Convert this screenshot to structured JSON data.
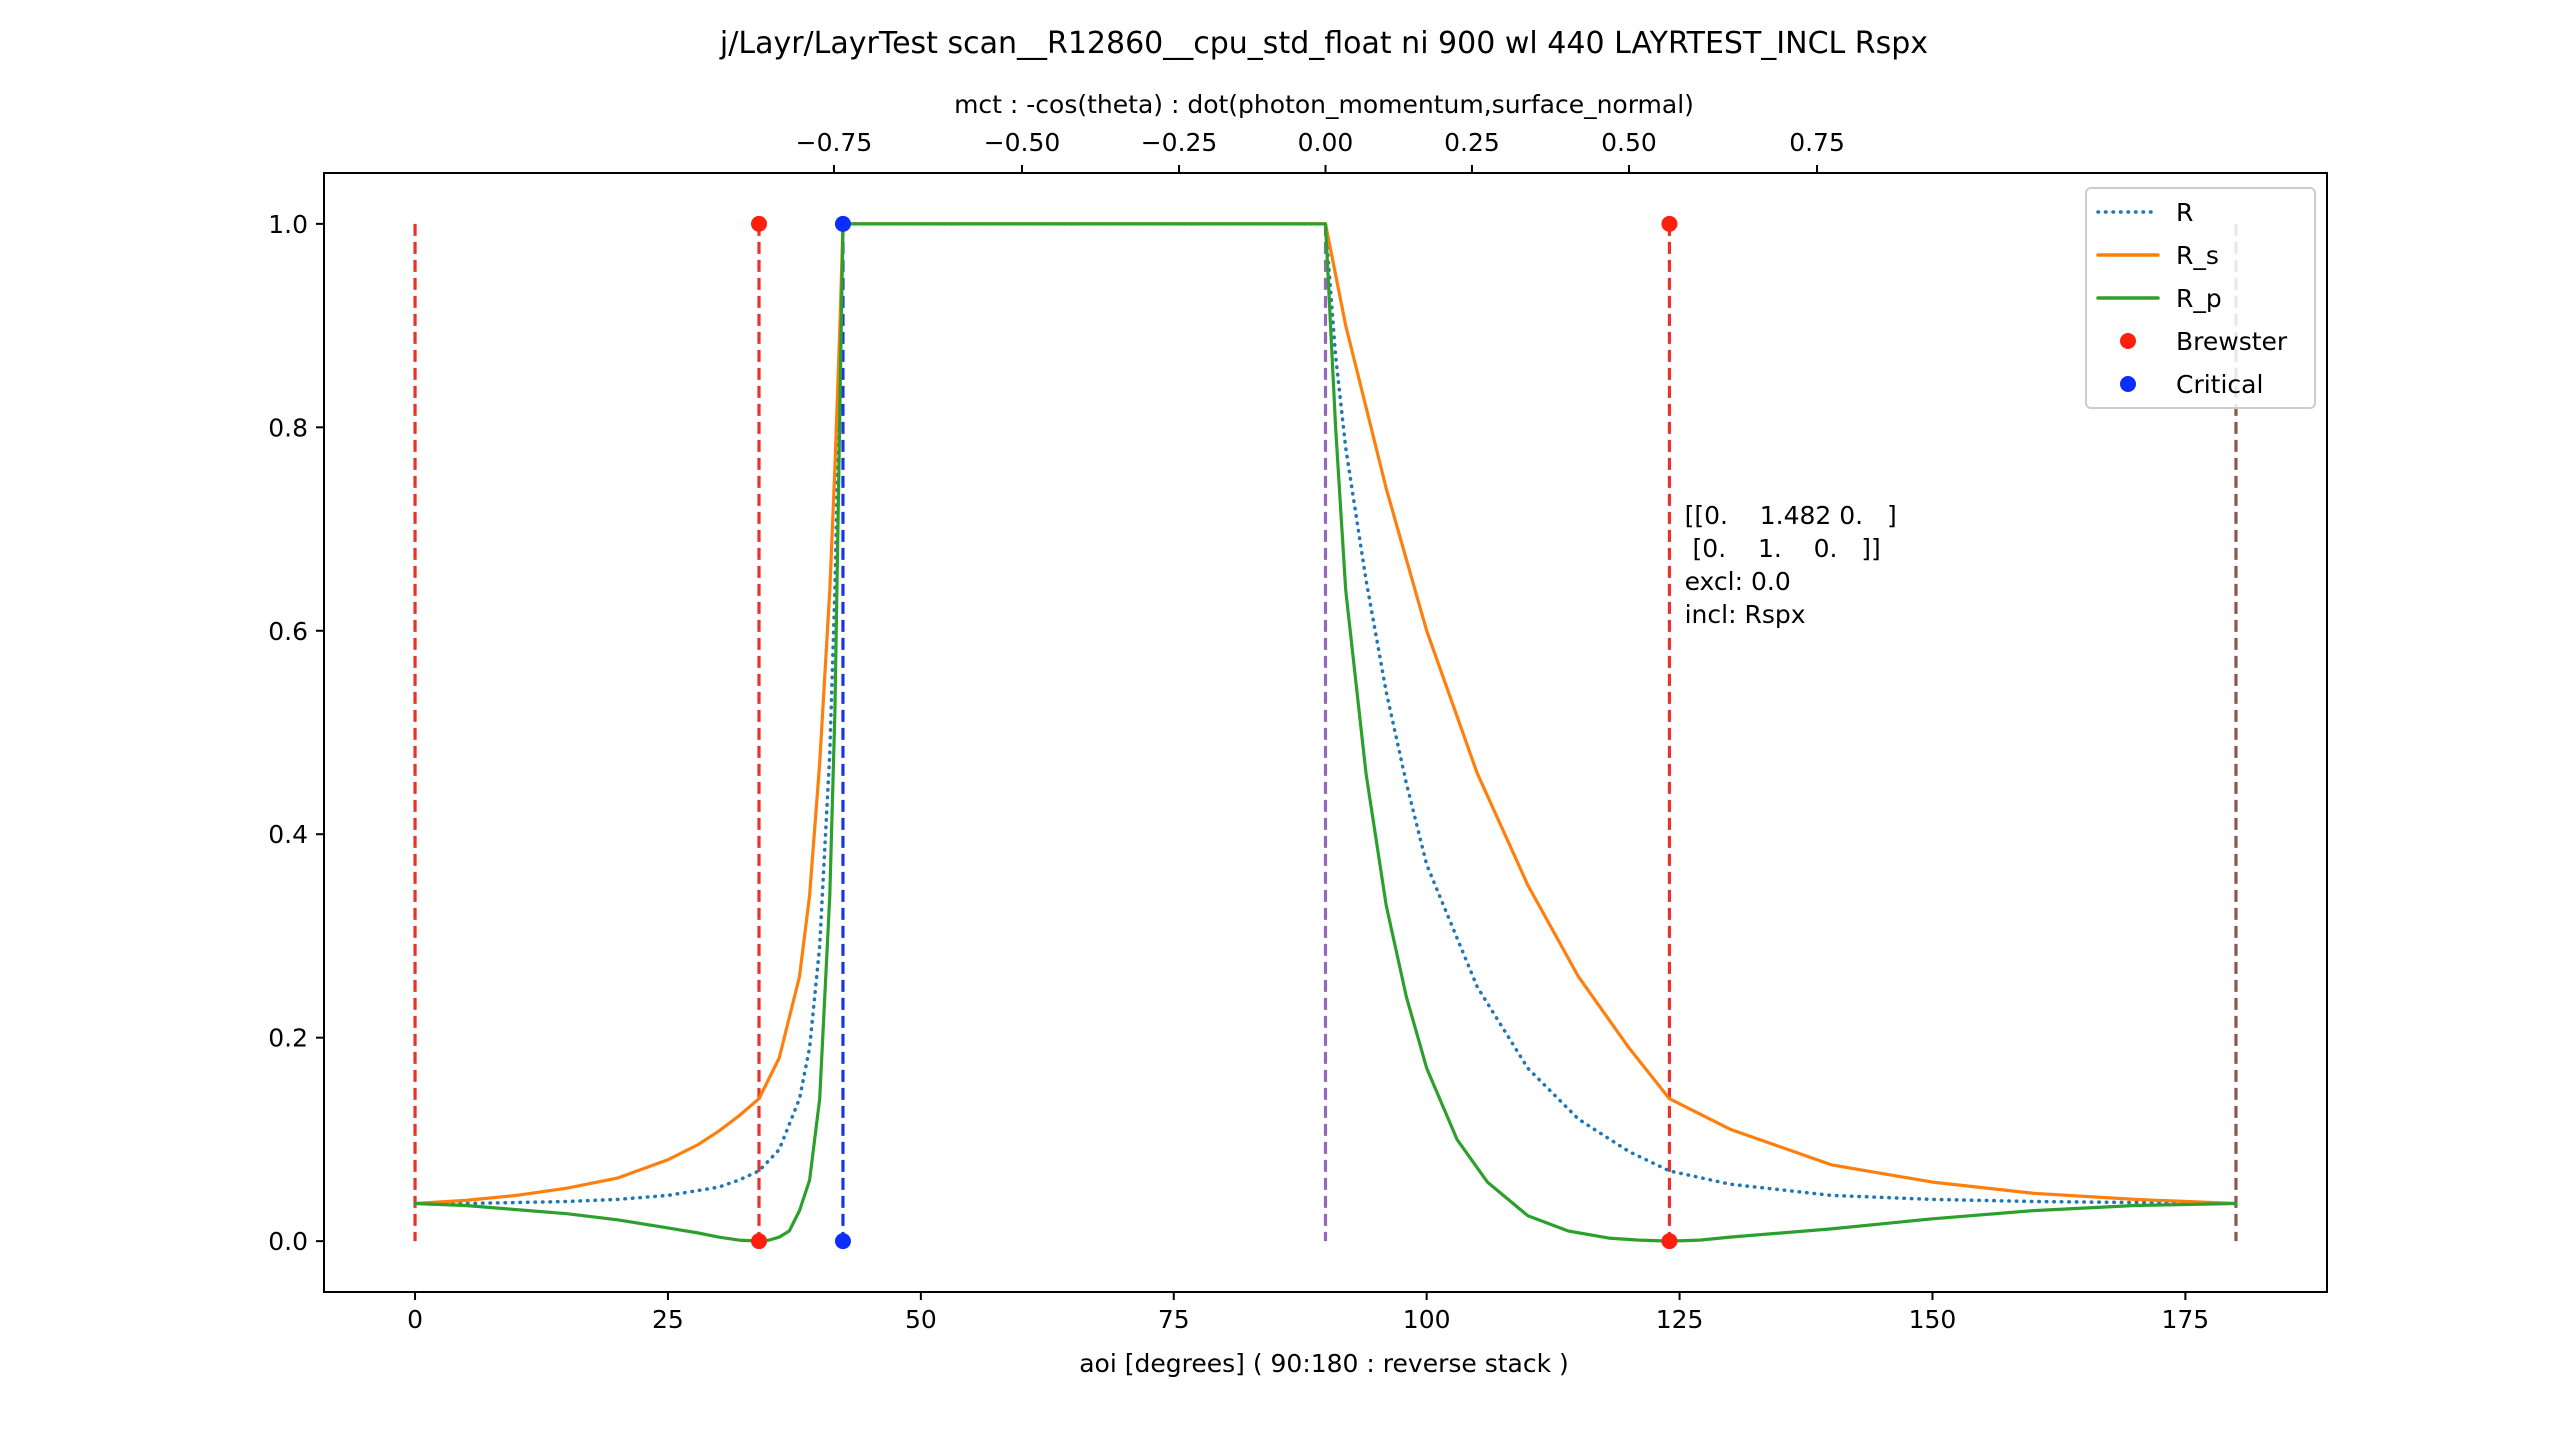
{
  "chart_data": {
    "type": "line",
    "title": "j/Layr/LayrTest scan__R12860__cpu_std_float ni 900 wl 440 LAYRTEST_INCL Rspx",
    "xlabel": "aoi [degrees] ( 90:180 : reverse stack )",
    "top_xlabel": "mct : -cos(theta) : dot(photon_momentum,surface_normal)",
    "xlim": [
      -9,
      189
    ],
    "ylim": [
      -0.05,
      1.05
    ],
    "xticks": [
      0,
      25,
      50,
      75,
      100,
      125,
      150,
      175
    ],
    "xtick_labels": [
      "0",
      "25",
      "50",
      "75",
      "100",
      "125",
      "150",
      "175"
    ],
    "yticks": [
      0.0,
      0.2,
      0.4,
      0.6,
      0.8,
      1.0
    ],
    "ytick_labels": [
      "0.0",
      "0.2",
      "0.4",
      "0.6",
      "0.8",
      "1.0"
    ],
    "top_xticks": [
      -0.75,
      -0.5,
      -0.25,
      0.0,
      0.25,
      0.5,
      0.75
    ],
    "top_xtick_labels": [
      "−0.75",
      "−0.50",
      "−0.25",
      "0.00",
      "0.25",
      "0.50",
      "0.75"
    ],
    "series": [
      {
        "name": "R",
        "style": "dotted",
        "color": "#1f77b4",
        "x": [
          0,
          5,
          10,
          15,
          20,
          25,
          30,
          32,
          34,
          36,
          38,
          39,
          40,
          41,
          41.5,
          42,
          42.3,
          50,
          90,
          91,
          92,
          94,
          96,
          98,
          100,
          105,
          110,
          115,
          120,
          124,
          130,
          140,
          150,
          160,
          170,
          180
        ],
        "values": [
          0.037,
          0.037,
          0.038,
          0.039,
          0.041,
          0.045,
          0.053,
          0.06,
          0.069,
          0.09,
          0.14,
          0.19,
          0.29,
          0.48,
          0.64,
          0.86,
          1.0,
          1.0,
          1.0,
          0.87,
          0.78,
          0.65,
          0.54,
          0.45,
          0.37,
          0.25,
          0.17,
          0.12,
          0.088,
          0.069,
          0.056,
          0.045,
          0.041,
          0.039,
          0.038,
          0.037
        ]
      },
      {
        "name": "R_s",
        "style": "solid",
        "color": "#ff7f0e",
        "x": [
          0,
          5,
          10,
          15,
          20,
          25,
          28,
          30,
          32,
          34,
          36,
          38,
          39,
          40,
          41,
          41.5,
          42,
          42.3,
          50,
          90,
          91,
          92,
          94,
          96,
          98,
          100,
          105,
          110,
          115,
          120,
          124,
          130,
          140,
          150,
          160,
          170,
          180
        ],
        "values": [
          0.037,
          0.04,
          0.045,
          0.052,
          0.062,
          0.08,
          0.095,
          0.108,
          0.123,
          0.14,
          0.18,
          0.26,
          0.34,
          0.47,
          0.64,
          0.76,
          0.9,
          1.0,
          1.0,
          1.0,
          0.95,
          0.9,
          0.82,
          0.74,
          0.67,
          0.6,
          0.46,
          0.35,
          0.26,
          0.19,
          0.14,
          0.11,
          0.075,
          0.058,
          0.047,
          0.041,
          0.037
        ]
      },
      {
        "name": "R_p",
        "style": "solid",
        "color": "#2ca02c",
        "x": [
          0,
          5,
          10,
          15,
          20,
          25,
          28,
          30,
          32,
          34,
          35,
          36,
          37,
          38,
          39,
          40,
          41,
          41.5,
          42,
          42.3,
          50,
          90,
          91,
          92,
          94,
          96,
          98,
          100,
          103,
          106,
          110,
          114,
          118,
          121,
          124,
          127,
          130,
          140,
          150,
          160,
          170,
          180
        ],
        "values": [
          0.037,
          0.035,
          0.031,
          0.027,
          0.021,
          0.013,
          0.008,
          0.004,
          0.001,
          0.0,
          0.001,
          0.004,
          0.01,
          0.03,
          0.06,
          0.14,
          0.34,
          0.52,
          0.82,
          1.0,
          1.0,
          1.0,
          0.8,
          0.64,
          0.46,
          0.33,
          0.24,
          0.17,
          0.1,
          0.058,
          0.025,
          0.01,
          0.003,
          0.001,
          0.0,
          0.001,
          0.004,
          0.012,
          0.022,
          0.03,
          0.035,
          0.037
        ]
      }
    ],
    "scatter": [
      {
        "name": "Brewster",
        "color": "#ff1f0e",
        "points": [
          [
            34.0,
            1.0
          ],
          [
            34.0,
            0.0
          ],
          [
            124.0,
            1.0
          ],
          [
            124.0,
            0.0
          ]
        ]
      },
      {
        "name": "Critical",
        "color": "#0a2eff",
        "points": [
          [
            42.3,
            1.0
          ],
          [
            42.3,
            0.0
          ]
        ]
      }
    ],
    "vlines": [
      {
        "x": 0,
        "color": "#e8322a"
      },
      {
        "x": 34.0,
        "color": "#e8322a"
      },
      {
        "x": 42.3,
        "color": "#1a35e6"
      },
      {
        "x": 90,
        "color": "#9467bd"
      },
      {
        "x": 124.0,
        "color": "#e8322a"
      },
      {
        "x": 180,
        "color": "#8c564b"
      }
    ],
    "annotation": {
      "x": 125.5,
      "y": 0.705,
      "lines": [
        "[[0.    1.482 0.   ]",
        " [0.    1.    0.   ]]",
        "excl: 0.0",
        "incl: Rspx"
      ]
    },
    "legend": {
      "position": "top-right",
      "entries": [
        {
          "label": "R",
          "kind": "line",
          "style": "dotted",
          "color": "#1f77b4"
        },
        {
          "label": "R_s",
          "kind": "line",
          "style": "solid",
          "color": "#ff7f0e"
        },
        {
          "label": "R_p",
          "kind": "line",
          "style": "solid",
          "color": "#2ca02c"
        },
        {
          "label": "Brewster",
          "kind": "marker",
          "color": "#ff1f0e"
        },
        {
          "label": "Critical",
          "kind": "marker",
          "color": "#0a2eff"
        }
      ]
    }
  }
}
